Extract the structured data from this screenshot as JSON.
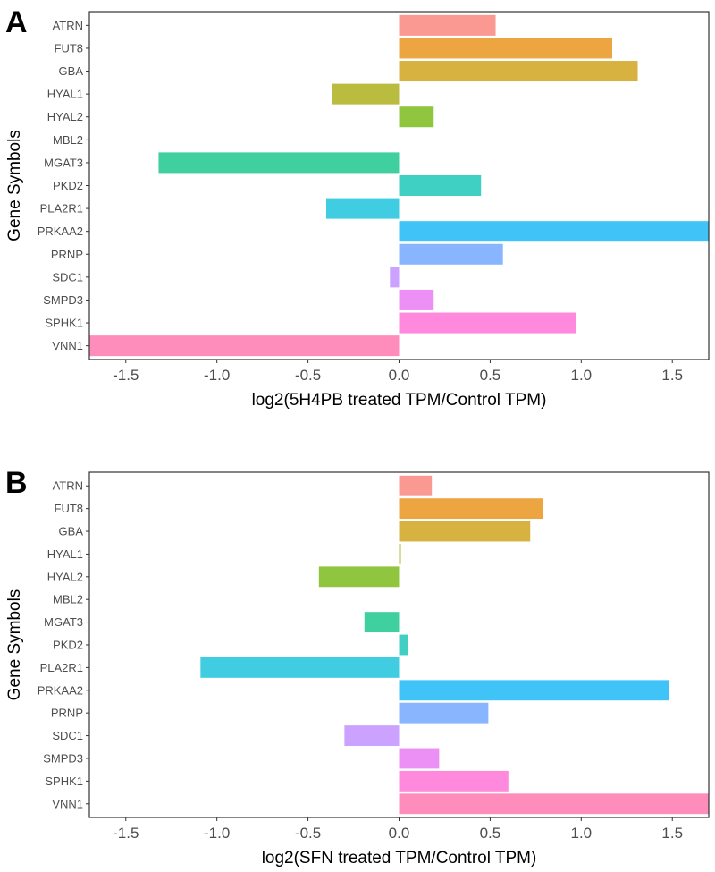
{
  "chart_data": [
    {
      "type": "bar",
      "orientation": "horizontal",
      "panel_label": "A",
      "title": "",
      "xlabel": "log2(5H4PB treated TPM/Control TPM)",
      "ylabel": "Gene Symbols",
      "xlim": [
        -1.7,
        1.7
      ],
      "xticks": [
        "-1.5",
        "-1.0",
        "-0.5",
        "0.0",
        "0.5",
        "1.0",
        "1.5"
      ],
      "categories": [
        "ATRN",
        "FUT8",
        "GBA",
        "HYAL1",
        "HYAL2",
        "MBL2",
        "MGAT3",
        "PKD2",
        "PLA2R1",
        "PRKAA2",
        "PRNP",
        "SDC1",
        "SMPD3",
        "SPHK1",
        "VNN1"
      ],
      "values": [
        0.53,
        1.17,
        1.31,
        -0.37,
        0.19,
        0,
        -1.32,
        0.45,
        -0.4,
        1.75,
        0.57,
        -0.05,
        0.19,
        0.97,
        -1.8
      ],
      "grid": false,
      "legend": "none"
    },
    {
      "type": "bar",
      "orientation": "horizontal",
      "panel_label": "B",
      "title": "",
      "xlabel": "log2(SFN treated TPM/Control TPM)",
      "ylabel": "Gene Symbols",
      "xlim": [
        -1.7,
        1.7
      ],
      "xticks": [
        "-1.5",
        "-1.0",
        "-0.5",
        "0.0",
        "0.5",
        "1.0",
        "1.5"
      ],
      "categories": [
        "ATRN",
        "FUT8",
        "GBA",
        "HYAL1",
        "HYAL2",
        "MBL2",
        "MGAT3",
        "PKD2",
        "PLA2R1",
        "PRKAA2",
        "PRNP",
        "SDC1",
        "SMPD3",
        "SPHK1",
        "VNN1"
      ],
      "values": [
        0.18,
        0.79,
        0.72,
        0.01,
        -0.44,
        0,
        -0.19,
        0.05,
        -1.09,
        1.48,
        0.49,
        -0.3,
        0.22,
        0.6,
        1.75
      ],
      "grid": false,
      "legend": "none"
    }
  ],
  "colors": [
    "#F8766D",
    "#E58700",
    "#C99800",
    "#A3A500",
    "#6BB100",
    "#00BA38",
    "#00BF7D",
    "#00C0AF",
    "#00BCD8",
    "#00B0F6",
    "#619CFF",
    "#B983FF",
    "#E76BF3",
    "#FD61D1",
    "#FF67A4"
  ]
}
